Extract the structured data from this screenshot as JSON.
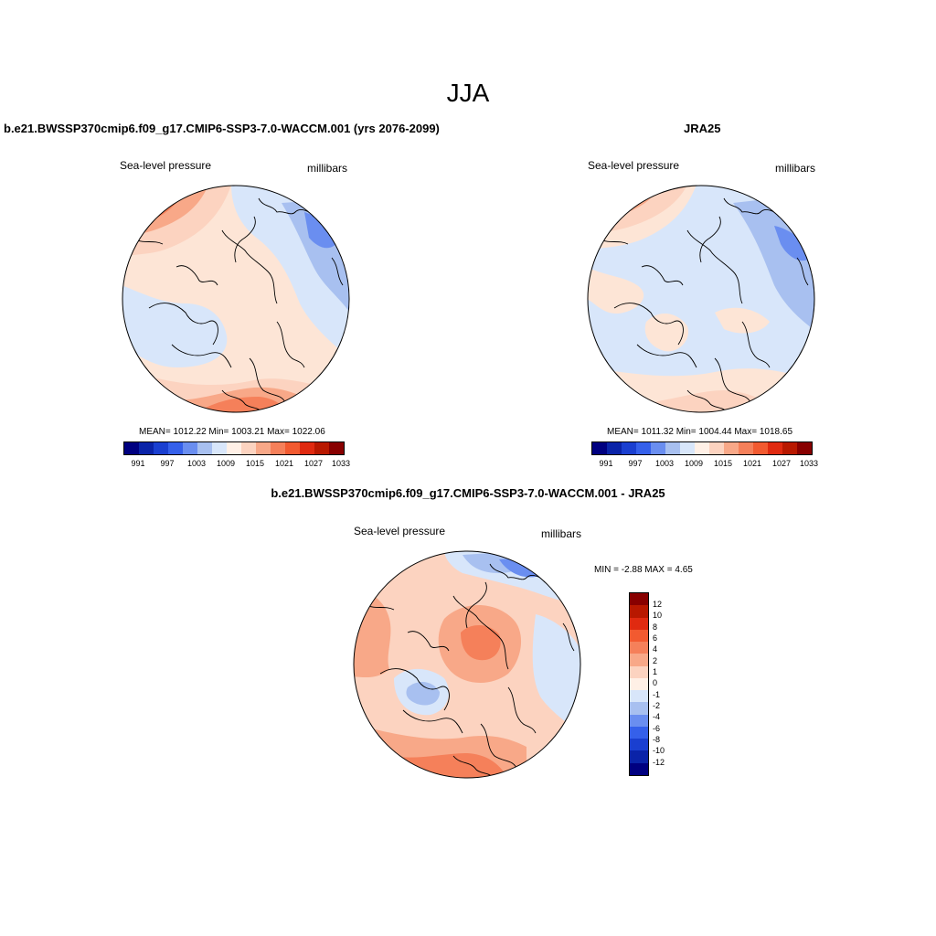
{
  "figure": {
    "title": "JJA"
  },
  "panels": [
    {
      "title": "b.e21.BWSSP370cmip6.f09_g17.CMIP6-SSP3-7.0-WACCM.001 (yrs 2076-2099)",
      "variable": "Sea-level pressure",
      "units": "millibars",
      "stats": "MEAN= 1012.22  Min= 1003.21  Max= 1022.06"
    },
    {
      "title": "JRA25",
      "variable": "Sea-level pressure",
      "units": "millibars",
      "stats": "MEAN= 1011.32  Min= 1004.44  Max= 1018.65"
    },
    {
      "title": "b.e21.BWSSP370cmip6.f09_g17.CMIP6-SSP3-7.0-WACCM.001 - JRA25",
      "variable": "Sea-level pressure",
      "units": "millibars",
      "stats": "MIN =  -2.88 MAX =   4.65"
    }
  ],
  "colorbars": {
    "abs_colors": [
      "#000080",
      "#0a23a8",
      "#1a3fd0",
      "#3560ea",
      "#6a8ef0",
      "#a8c0f0",
      "#d8e6fa",
      "#fff0e6",
      "#fcd3c0",
      "#f8a888",
      "#f5805a",
      "#f25a30",
      "#e02a10",
      "#b81800",
      "#880000"
    ],
    "abs_tick_labels": [
      "991",
      "997",
      "1003",
      "1009",
      "1015",
      "1021",
      "1027",
      "1033"
    ],
    "diff_colors": [
      "#000080",
      "#0a23a8",
      "#1a3fd0",
      "#3560ea",
      "#6a8ef0",
      "#a8c0f0",
      "#d8e6fa",
      "#fff0e6",
      "#fcd3c0",
      "#f8a888",
      "#f5805a",
      "#f25a30",
      "#e02a10",
      "#b81800",
      "#880000"
    ],
    "diff_tick_labels": [
      "12",
      "10",
      "8",
      "6",
      "4",
      "2",
      "1",
      "0",
      "-1",
      "-2",
      "-4",
      "-6",
      "-8",
      "-10",
      "-12"
    ]
  },
  "chart_data": [
    {
      "type": "heatmap",
      "title": "b.e21.BWSSP370cmip6.f09_g17.CMIP6-SSP3-7.0-WACCM.001 (yrs 2076-2099)",
      "projection": "north polar stereographic",
      "variable": "Sea-level pressure",
      "units": "millibars",
      "mean": 1012.22,
      "min": 1003.21,
      "max": 1022.06,
      "contour_levels": [
        991,
        994,
        997,
        1000,
        1003,
        1006,
        1009,
        1012,
        1015,
        1018,
        1021,
        1024,
        1027,
        1030,
        1033
      ]
    },
    {
      "type": "heatmap",
      "title": "JRA25",
      "projection": "north polar stereographic",
      "variable": "Sea-level pressure",
      "units": "millibars",
      "mean": 1011.32,
      "min": 1004.44,
      "max": 1018.65,
      "contour_levels": [
        991,
        994,
        997,
        1000,
        1003,
        1006,
        1009,
        1012,
        1015,
        1018,
        1021,
        1024,
        1027,
        1030,
        1033
      ]
    },
    {
      "type": "heatmap",
      "title": "b.e21.BWSSP370cmip6.f09_g17.CMIP6-SSP3-7.0-WACCM.001 - JRA25",
      "projection": "north polar stereographic",
      "variable": "Sea-level pressure",
      "units": "millibars",
      "min": -2.88,
      "max": 4.65,
      "contour_levels": [
        -12,
        -10,
        -8,
        -6,
        -4,
        -2,
        -1,
        0,
        1,
        2,
        4,
        6,
        8,
        10,
        12
      ]
    }
  ]
}
